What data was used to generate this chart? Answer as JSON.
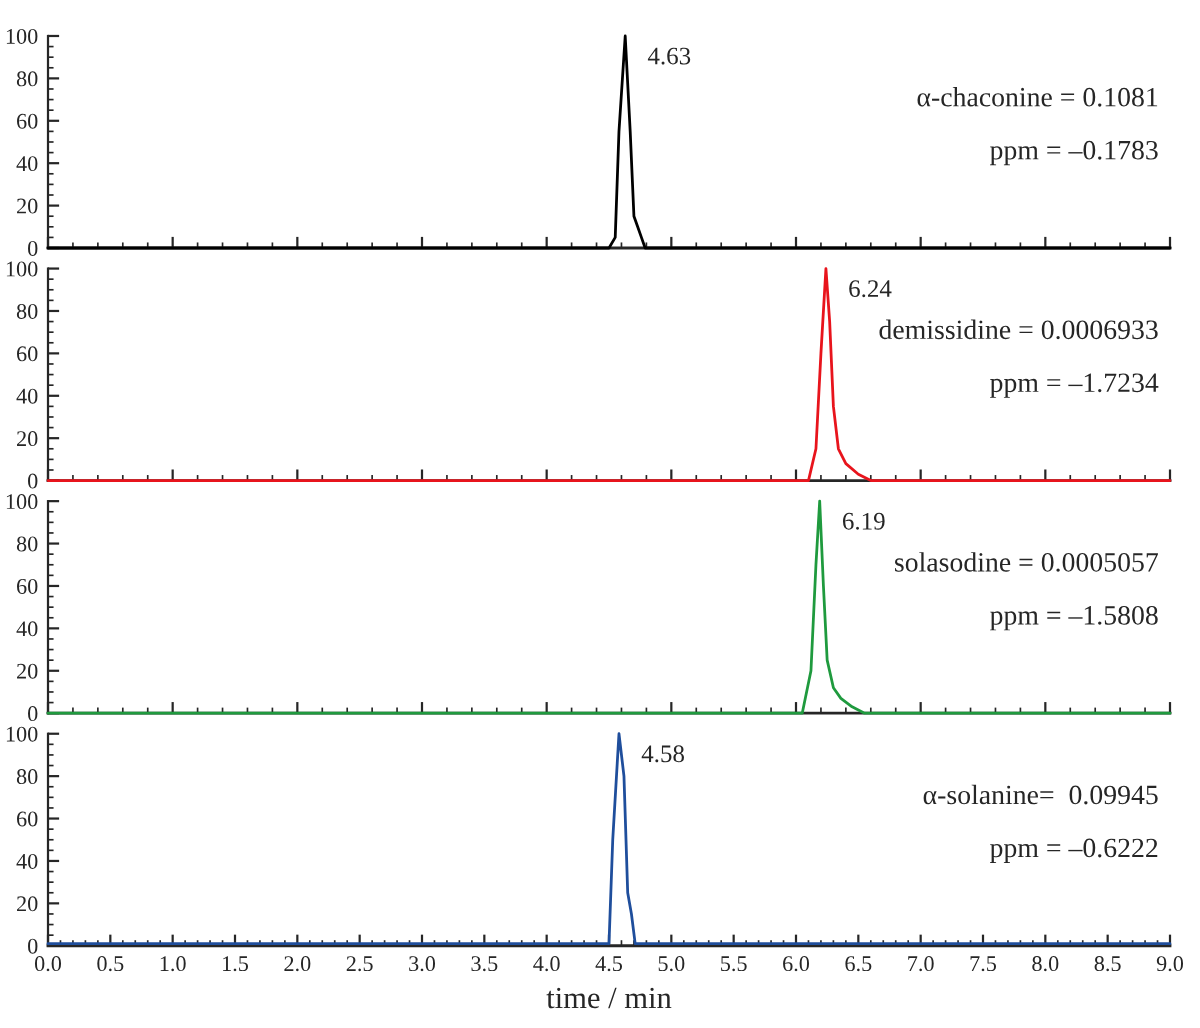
{
  "chart_data": [
    {
      "type": "line",
      "xlim": [
        0,
        9
      ],
      "ylim": [
        0,
        100
      ],
      "yticks": [
        0,
        20,
        40,
        60,
        80,
        100
      ],
      "tick_labels": "y",
      "grid": false,
      "legend": false,
      "series": [
        {
          "color": "#000000",
          "x": [
            0,
            4.5,
            4.55,
            4.58,
            4.63,
            4.67,
            4.7,
            4.73,
            4.76,
            4.79,
            9
          ],
          "values": [
            0,
            0,
            5,
            55,
            100,
            55,
            15,
            10,
            5,
            0,
            0
          ]
        }
      ],
      "annotations": [
        {
          "text": "4.63",
          "x": 4.63,
          "y": 100
        },
        "α-chaconine = 0.1081",
        "ppm = –0.1783"
      ]
    },
    {
      "type": "line",
      "xlim": [
        0,
        9
      ],
      "ylim": [
        0,
        100
      ],
      "yticks": [
        0,
        20,
        40,
        60,
        80,
        100
      ],
      "tick_labels": "y",
      "grid": false,
      "legend": false,
      "series": [
        {
          "color": "#e8141c",
          "x": [
            0,
            6.1,
            6.16,
            6.2,
            6.24,
            6.27,
            6.3,
            6.34,
            6.4,
            6.5,
            6.6,
            9
          ],
          "values": [
            0,
            0,
            15,
            60,
            100,
            75,
            35,
            15,
            8,
            3,
            0,
            0
          ]
        }
      ],
      "annotations": [
        {
          "text": "6.24",
          "x": 6.24,
          "y": 100
        },
        "demissidine = 0.0006933",
        "ppm = –1.7234"
      ]
    },
    {
      "type": "line",
      "xlim": [
        0,
        9
      ],
      "ylim": [
        0,
        100
      ],
      "yticks": [
        0,
        20,
        40,
        60,
        80,
        100
      ],
      "tick_labels": "y",
      "grid": false,
      "legend": false,
      "series": [
        {
          "color": "#1f9a3e",
          "x": [
            0,
            6.05,
            6.12,
            6.16,
            6.19,
            6.22,
            6.25,
            6.3,
            6.36,
            6.45,
            6.55,
            9
          ],
          "values": [
            0,
            0,
            20,
            70,
            100,
            60,
            25,
            12,
            7,
            3,
            0,
            0
          ]
        }
      ],
      "annotations": [
        {
          "text": "6.19",
          "x": 6.19,
          "y": 100
        },
        "solasodine = 0.0005057",
        "ppm = –1.5808"
      ]
    },
    {
      "type": "line",
      "xlim": [
        0,
        9
      ],
      "ylim": [
        0,
        100
      ],
      "yticks": [
        0,
        20,
        40,
        60,
        80,
        100
      ],
      "xticks": [
        {
          "value": 0,
          "label": "0.0"
        },
        0.5,
        {
          "value": 1,
          "label": "1.0"
        },
        1.5,
        {
          "value": 2,
          "label": "2.0"
        },
        2.5,
        {
          "value": 3,
          "label": "3.0"
        },
        3.5,
        {
          "value": 4,
          "label": "4.0"
        },
        4.5,
        {
          "value": 5,
          "label": "5.0"
        },
        5.5,
        {
          "value": 6,
          "label": "6.0"
        },
        6.5,
        {
          "value": 7,
          "label": "7.0"
        },
        7.5,
        {
          "value": 8,
          "label": "8.0"
        },
        8.5,
        {
          "value": 9,
          "label": "9.0"
        }
      ],
      "grid": false,
      "legend": false,
      "xlabel": "time / min",
      "series": [
        {
          "color": "#1f4e9c",
          "x": [
            0,
            4.5,
            4.53,
            4.58,
            4.62,
            4.65,
            4.68,
            4.71,
            9
          ],
          "values": [
            1,
            1,
            50,
            100,
            80,
            25,
            15,
            1,
            1
          ]
        }
      ],
      "annotations": [
        {
          "text": "4.58",
          "x": 4.58,
          "y": 100
        },
        "α-solanine=  0.09945",
        "ppm = –0.6222"
      ]
    }
  ]
}
